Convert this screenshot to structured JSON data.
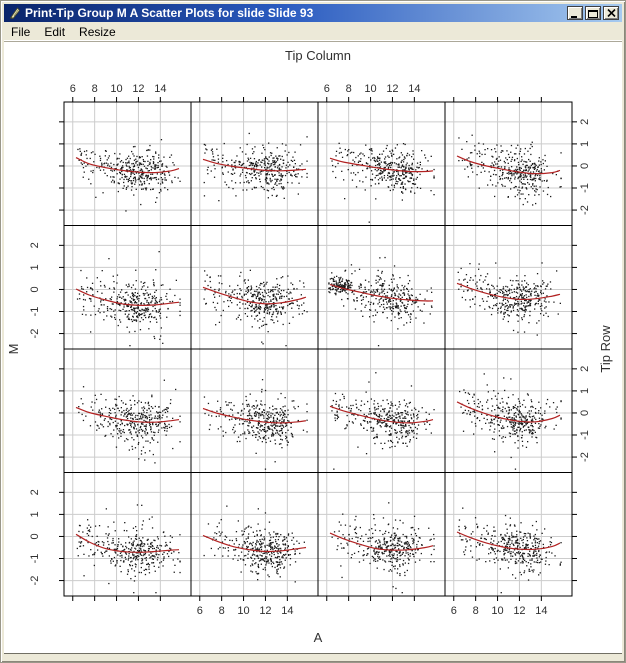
{
  "window": {
    "title": "Print-Tip Group M A Scatter Plots for slide Slide 93",
    "icon": "quill-graphics-device-icon",
    "controls": {
      "minimize": "minimize",
      "maximize": "maximize",
      "close": "close"
    }
  },
  "menu": {
    "items": [
      "File",
      "Edit",
      "Resize"
    ]
  },
  "chart_data": {
    "type": "scatter",
    "description": "R lattice 4x4 trellis of MA scatter plots per print-tip group, black points with red loess smoother per panel",
    "layout": {
      "rows": 4,
      "cols": 4,
      "grid": true
    },
    "xlabel": "A",
    "ylabel": "M",
    "top_axis_label": "Tip Column",
    "right_axis_label": "Tip Row",
    "x_ticks": [
      6,
      8,
      10,
      12,
      14
    ],
    "y_ticks": [
      2,
      1,
      0,
      -1,
      -2
    ],
    "x_range": [
      5.2,
      16.8
    ],
    "y_range": [
      -2.7,
      2.9
    ],
    "x_labels_on_top_cols": [
      0,
      2
    ],
    "x_labels_on_bottom_cols": [
      1,
      3
    ],
    "y_labels_on_left_rows": [
      1,
      3
    ],
    "y_labels_on_right_rows": [
      0,
      2
    ],
    "colors": {
      "point": "#1a1a1a",
      "loess": "#b22222",
      "grid": "#cccccc",
      "panel_border": "#000000",
      "axis_text": "#303030",
      "titlebar_left": "#0a246a",
      "titlebar_right": "#a6caf0",
      "window_face": "#ece9d8"
    },
    "point_cloud_model": {
      "kind": "seeded-random-approximation",
      "points_per_panel": 360,
      "y_noise_sd": 0.48,
      "outlier_prob": 0.07,
      "outlier_extra_sd": 0.85
    },
    "panels": [
      {
        "row": 1,
        "col": 1,
        "seed": 101,
        "n": 360,
        "loess": [
          [
            6.3,
            0.38
          ],
          [
            7.5,
            0.1
          ],
          [
            9,
            -0.08
          ],
          [
            10.5,
            -0.2
          ],
          [
            12,
            -0.28
          ],
          [
            13.5,
            -0.3
          ],
          [
            15,
            -0.22
          ],
          [
            15.7,
            -0.12
          ]
        ]
      },
      {
        "row": 1,
        "col": 2,
        "seed": 108,
        "n": 360,
        "loess": [
          [
            6.3,
            0.3
          ],
          [
            7.5,
            0.12
          ],
          [
            9,
            -0.02
          ],
          [
            10.5,
            -0.12
          ],
          [
            12,
            -0.2
          ],
          [
            13.5,
            -0.22
          ],
          [
            15,
            -0.18
          ],
          [
            15.7,
            -0.15
          ]
        ]
      },
      {
        "row": 1,
        "col": 3,
        "seed": 115,
        "n": 360,
        "loess": [
          [
            6.3,
            0.35
          ],
          [
            7.5,
            0.18
          ],
          [
            9,
            0.05
          ],
          [
            10.5,
            -0.08
          ],
          [
            12,
            -0.18
          ],
          [
            13.5,
            -0.25
          ],
          [
            15,
            -0.25
          ],
          [
            15.7,
            -0.22
          ]
        ]
      },
      {
        "row": 1,
        "col": 4,
        "seed": 122,
        "n": 360,
        "loess": [
          [
            6.3,
            0.45
          ],
          [
            7.5,
            0.2
          ],
          [
            9,
            0.0
          ],
          [
            10.5,
            -0.15
          ],
          [
            12,
            -0.28
          ],
          [
            13.5,
            -0.35
          ],
          [
            15,
            -0.3
          ],
          [
            15.7,
            -0.2
          ]
        ]
      },
      {
        "row": 2,
        "col": 1,
        "seed": 129,
        "n": 360,
        "loess": [
          [
            6.3,
            0.02
          ],
          [
            7.5,
            -0.25
          ],
          [
            9,
            -0.48
          ],
          [
            10.5,
            -0.65
          ],
          [
            12,
            -0.72
          ],
          [
            13.5,
            -0.7
          ],
          [
            15,
            -0.62
          ],
          [
            15.7,
            -0.58
          ]
        ]
      },
      {
        "row": 2,
        "col": 2,
        "seed": 136,
        "n": 360,
        "loess": [
          [
            6.3,
            0.1
          ],
          [
            7.5,
            -0.12
          ],
          [
            9,
            -0.35
          ],
          [
            10.5,
            -0.55
          ],
          [
            12,
            -0.65
          ],
          [
            13.5,
            -0.6
          ],
          [
            15,
            -0.45
          ],
          [
            15.7,
            -0.35
          ]
        ]
      },
      {
        "row": 2,
        "col": 3,
        "seed": 143,
        "n": 300,
        "loess": [
          [
            6.3,
            0.22
          ],
          [
            7.5,
            0.05
          ],
          [
            9,
            -0.12
          ],
          [
            10.5,
            -0.28
          ],
          [
            12,
            -0.4
          ],
          [
            13.5,
            -0.48
          ],
          [
            15,
            -0.52
          ],
          [
            15.7,
            -0.52
          ]
        ],
        "cluster": {
          "x": 7.3,
          "y": 0.15,
          "sx": 0.55,
          "sy": 0.17,
          "n": 130
        }
      },
      {
        "row": 2,
        "col": 4,
        "seed": 150,
        "n": 360,
        "loess": [
          [
            6.3,
            0.28
          ],
          [
            7.5,
            0.05
          ],
          [
            9,
            -0.18
          ],
          [
            10.5,
            -0.35
          ],
          [
            12,
            -0.45
          ],
          [
            13.5,
            -0.42
          ],
          [
            15,
            -0.3
          ],
          [
            15.7,
            -0.22
          ]
        ]
      },
      {
        "row": 3,
        "col": 1,
        "seed": 157,
        "n": 360,
        "loess": [
          [
            6.3,
            0.25
          ],
          [
            7.5,
            0.02
          ],
          [
            9,
            -0.15
          ],
          [
            10.5,
            -0.3
          ],
          [
            12,
            -0.4
          ],
          [
            13.5,
            -0.42
          ],
          [
            15,
            -0.35
          ],
          [
            15.7,
            -0.3
          ]
        ]
      },
      {
        "row": 3,
        "col": 2,
        "seed": 164,
        "n": 360,
        "loess": [
          [
            6.3,
            0.2
          ],
          [
            7.5,
            0.0
          ],
          [
            9,
            -0.18
          ],
          [
            10.5,
            -0.32
          ],
          [
            12,
            -0.42
          ],
          [
            13.5,
            -0.45
          ],
          [
            15,
            -0.4
          ],
          [
            15.7,
            -0.35
          ]
        ]
      },
      {
        "row": 3,
        "col": 3,
        "seed": 171,
        "n": 360,
        "loess": [
          [
            6.3,
            0.3
          ],
          [
            7.5,
            0.1
          ],
          [
            9,
            -0.1
          ],
          [
            10.5,
            -0.28
          ],
          [
            12,
            -0.4
          ],
          [
            13.5,
            -0.45
          ],
          [
            15,
            -0.38
          ],
          [
            15.7,
            -0.3
          ]
        ]
      },
      {
        "row": 3,
        "col": 4,
        "seed": 178,
        "n": 360,
        "loess": [
          [
            6.3,
            0.5
          ],
          [
            7.5,
            0.22
          ],
          [
            9,
            -0.05
          ],
          [
            10.5,
            -0.25
          ],
          [
            12,
            -0.38
          ],
          [
            13.5,
            -0.4
          ],
          [
            15,
            -0.25
          ],
          [
            15.7,
            -0.1
          ]
        ]
      },
      {
        "row": 4,
        "col": 1,
        "seed": 185,
        "n": 360,
        "loess": [
          [
            6.3,
            0.1
          ],
          [
            7.5,
            -0.25
          ],
          [
            9,
            -0.55
          ],
          [
            10.5,
            -0.68
          ],
          [
            12,
            -0.72
          ],
          [
            13.5,
            -0.68
          ],
          [
            15,
            -0.62
          ],
          [
            15.7,
            -0.6
          ]
        ]
      },
      {
        "row": 4,
        "col": 2,
        "seed": 192,
        "n": 360,
        "loess": [
          [
            6.3,
            0.05
          ],
          [
            7.5,
            -0.2
          ],
          [
            9,
            -0.45
          ],
          [
            10.5,
            -0.6
          ],
          [
            12,
            -0.68
          ],
          [
            13.5,
            -0.65
          ],
          [
            15,
            -0.55
          ],
          [
            15.7,
            -0.5
          ]
        ]
      },
      {
        "row": 4,
        "col": 3,
        "seed": 199,
        "n": 360,
        "loess": [
          [
            6.3,
            0.15
          ],
          [
            7.5,
            -0.1
          ],
          [
            9,
            -0.35
          ],
          [
            10.5,
            -0.55
          ],
          [
            12,
            -0.62
          ],
          [
            13.5,
            -0.6
          ],
          [
            15,
            -0.5
          ],
          [
            15.7,
            -0.42
          ]
        ]
      },
      {
        "row": 4,
        "col": 4,
        "seed": 206,
        "n": 360,
        "loess": [
          [
            6.3,
            0.2
          ],
          [
            7.5,
            -0.05
          ],
          [
            9,
            -0.3
          ],
          [
            10.5,
            -0.48
          ],
          [
            12,
            -0.58
          ],
          [
            13.5,
            -0.58
          ],
          [
            15,
            -0.45
          ],
          [
            15.7,
            -0.3
          ]
        ]
      }
    ]
  }
}
